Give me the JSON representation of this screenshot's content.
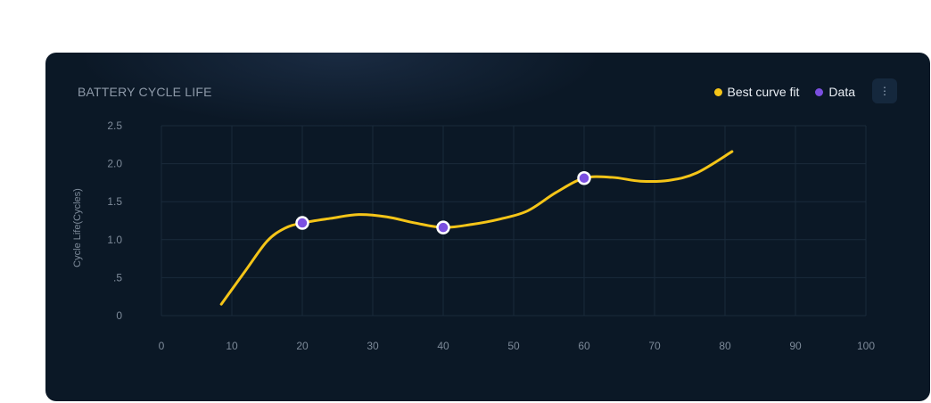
{
  "card": {
    "title": "BATTERY CYCLE LIFE",
    "menu_icon": "more-vertical-icon"
  },
  "legend": [
    {
      "label": "Best curve fit",
      "color": "#f5c518"
    },
    {
      "label": "Data",
      "color": "#7b4fe0"
    }
  ],
  "chart_data": {
    "type": "line",
    "title": "BATTERY CYCLE LIFE",
    "xlabel": "",
    "ylabel": "Cycle Life(Cycles)",
    "xlim": [
      0,
      100
    ],
    "ylim": [
      0,
      2.5
    ],
    "x_ticks": [
      "0",
      "10",
      "20",
      "30",
      "40",
      "50",
      "60",
      "70",
      "80",
      "90",
      "100"
    ],
    "y_ticks": [
      "0",
      ".5",
      "1.0",
      "1.5",
      "2.0",
      "2.5"
    ],
    "grid": true,
    "legend_position": "top-right",
    "series": [
      {
        "name": "Best curve fit",
        "type": "line",
        "color": "#f5c518",
        "x": [
          8.5,
          12,
          15,
          17.5,
          20,
          24,
          28,
          32,
          36,
          40,
          44,
          48,
          52,
          56,
          60,
          64,
          68,
          72,
          76,
          81
        ],
        "y": [
          0.15,
          0.6,
          0.98,
          1.15,
          1.22,
          1.28,
          1.33,
          1.3,
          1.22,
          1.16,
          1.2,
          1.27,
          1.38,
          1.62,
          1.81,
          1.82,
          1.77,
          1.78,
          1.88,
          2.16
        ]
      },
      {
        "name": "Data",
        "type": "scatter",
        "color": "#7b4fe0",
        "x": [
          20,
          40,
          60
        ],
        "y": [
          1.22,
          1.16,
          1.81
        ]
      }
    ]
  }
}
